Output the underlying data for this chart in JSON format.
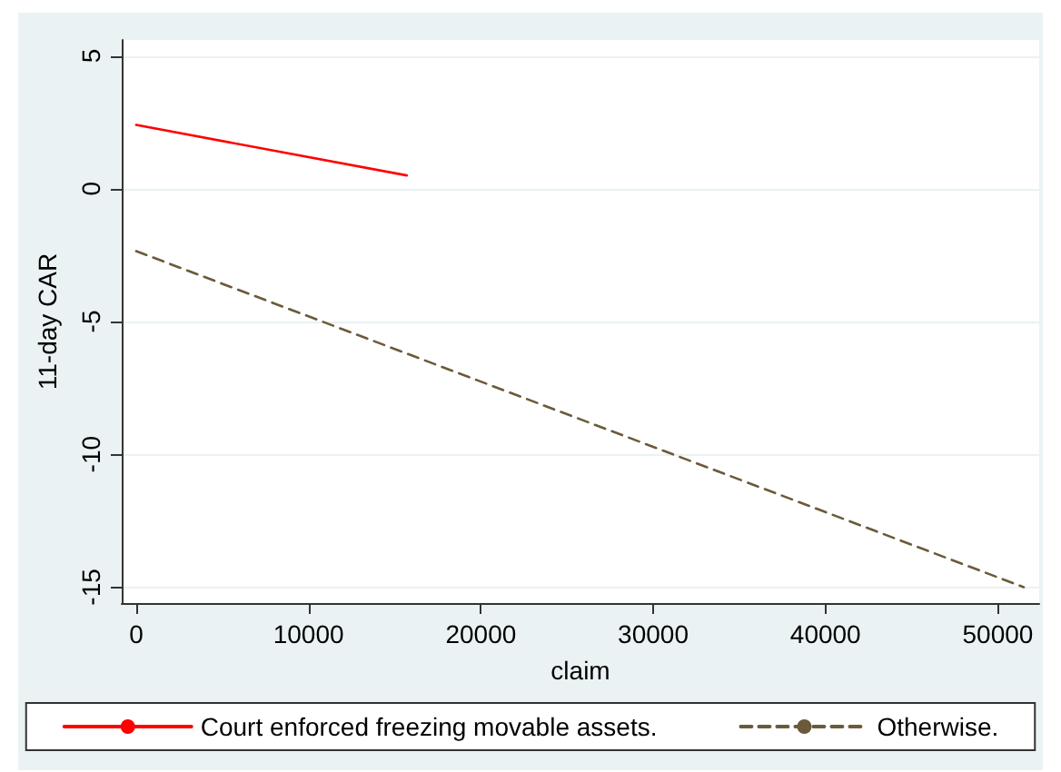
{
  "chart_data": {
    "type": "line",
    "xlabel": "claim",
    "ylabel": "11-day CAR",
    "xlim": [
      -840,
      52400
    ],
    "xticks": [
      0,
      10000,
      20000,
      30000,
      40000,
      50000
    ],
    "ylim": [
      -15.6,
      5.6
    ],
    "yticks": [
      -15,
      -10,
      -5,
      0,
      5
    ],
    "grid": "y",
    "legend": "bottom",
    "marker": "none",
    "series": [
      {
        "name": "Court enforced freezing movable assets.",
        "color": "#ff0000",
        "line_style": "solid",
        "x": [
          0,
          15700
        ],
        "values": [
          2.4,
          0.5
        ]
      },
      {
        "name": "Otherwise.",
        "color": "#6b5a3a",
        "line_style": "dashed",
        "x": [
          0,
          51500
        ],
        "values": [
          -2.35,
          -15
        ]
      }
    ]
  }
}
